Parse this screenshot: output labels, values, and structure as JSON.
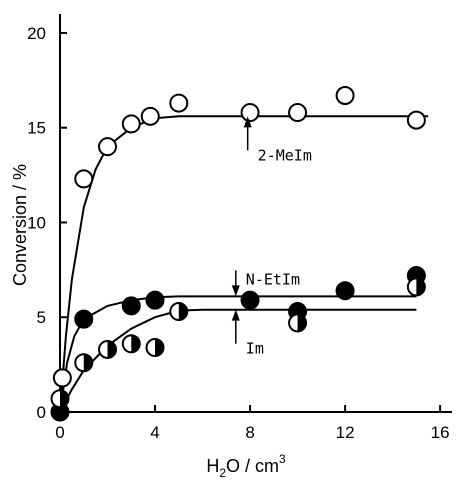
{
  "chart_data": {
    "type": "scatter",
    "title": "",
    "xlabel": {
      "pre": "H",
      "sub": "2",
      "mid": "O / cm",
      "sup": "3"
    },
    "ylabel": "Conversion / %",
    "xlim": [
      0,
      16.5
    ],
    "ylim": [
      0,
      21
    ],
    "xticks": [
      0,
      4,
      8,
      12,
      16
    ],
    "yticks": [
      0,
      5,
      10,
      15,
      20
    ],
    "grid": false,
    "series": [
      {
        "label": "2-MeIm",
        "marker": "open",
        "points": [
          [
            0.1,
            1.8
          ],
          [
            1.0,
            12.3
          ],
          [
            2.0,
            14.0
          ],
          [
            3.0,
            15.2
          ],
          [
            3.8,
            15.6
          ],
          [
            5.0,
            16.3
          ],
          [
            8.0,
            15.8
          ],
          [
            10.0,
            15.8
          ],
          [
            12.0,
            16.7
          ],
          [
            15.0,
            15.4
          ]
        ],
        "curve": [
          [
            0,
            0
          ],
          [
            0.25,
            4.0
          ],
          [
            0.5,
            7.0
          ],
          [
            1.0,
            10.8
          ],
          [
            1.5,
            12.8
          ],
          [
            2.0,
            14.0
          ],
          [
            3.0,
            15.0
          ],
          [
            4.0,
            15.5
          ],
          [
            5.0,
            15.6
          ],
          [
            15.5,
            15.6
          ]
        ]
      },
      {
        "label": "N-EtIm",
        "marker": "filled",
        "points": [
          [
            0.0,
            0.0
          ],
          [
            1.0,
            4.9
          ],
          [
            3.0,
            5.6
          ],
          [
            4.0,
            5.9
          ],
          [
            8.0,
            5.9
          ],
          [
            10.0,
            5.3
          ],
          [
            12.0,
            6.4
          ],
          [
            15.0,
            7.2
          ]
        ],
        "curve": [
          [
            0,
            0
          ],
          [
            0.3,
            2.6
          ],
          [
            0.6,
            4.0
          ],
          [
            1.0,
            4.9
          ],
          [
            2.0,
            5.6
          ],
          [
            3.0,
            5.9
          ],
          [
            4.0,
            6.05
          ],
          [
            5.0,
            6.1
          ],
          [
            15.0,
            6.1
          ]
        ]
      },
      {
        "label": "Im",
        "marker": "half",
        "points": [
          [
            0.0,
            0.7
          ],
          [
            1.0,
            2.6
          ],
          [
            2.0,
            3.3
          ],
          [
            3.0,
            3.6
          ],
          [
            4.0,
            3.4
          ],
          [
            5.0,
            5.3
          ],
          [
            10.0,
            4.7
          ],
          [
            15.0,
            6.6
          ]
        ],
        "curve": [
          [
            0,
            0
          ],
          [
            0.5,
            1.2
          ],
          [
            1.0,
            2.2
          ],
          [
            2.0,
            3.5
          ],
          [
            3.0,
            4.4
          ],
          [
            4.0,
            5.0
          ],
          [
            5.0,
            5.35
          ],
          [
            6.0,
            5.4
          ],
          [
            15.0,
            5.4
          ]
        ]
      }
    ],
    "annotations": [
      {
        "text": "2-MeIm",
        "arrow_at": [
          7.9,
          15.6
        ],
        "direction": "up"
      },
      {
        "text": "N-EtIm",
        "arrow_at": [
          7.4,
          6.1
        ],
        "direction": "down"
      },
      {
        "text": "Im",
        "arrow_at": [
          7.4,
          5.4
        ],
        "direction": "up"
      }
    ]
  }
}
